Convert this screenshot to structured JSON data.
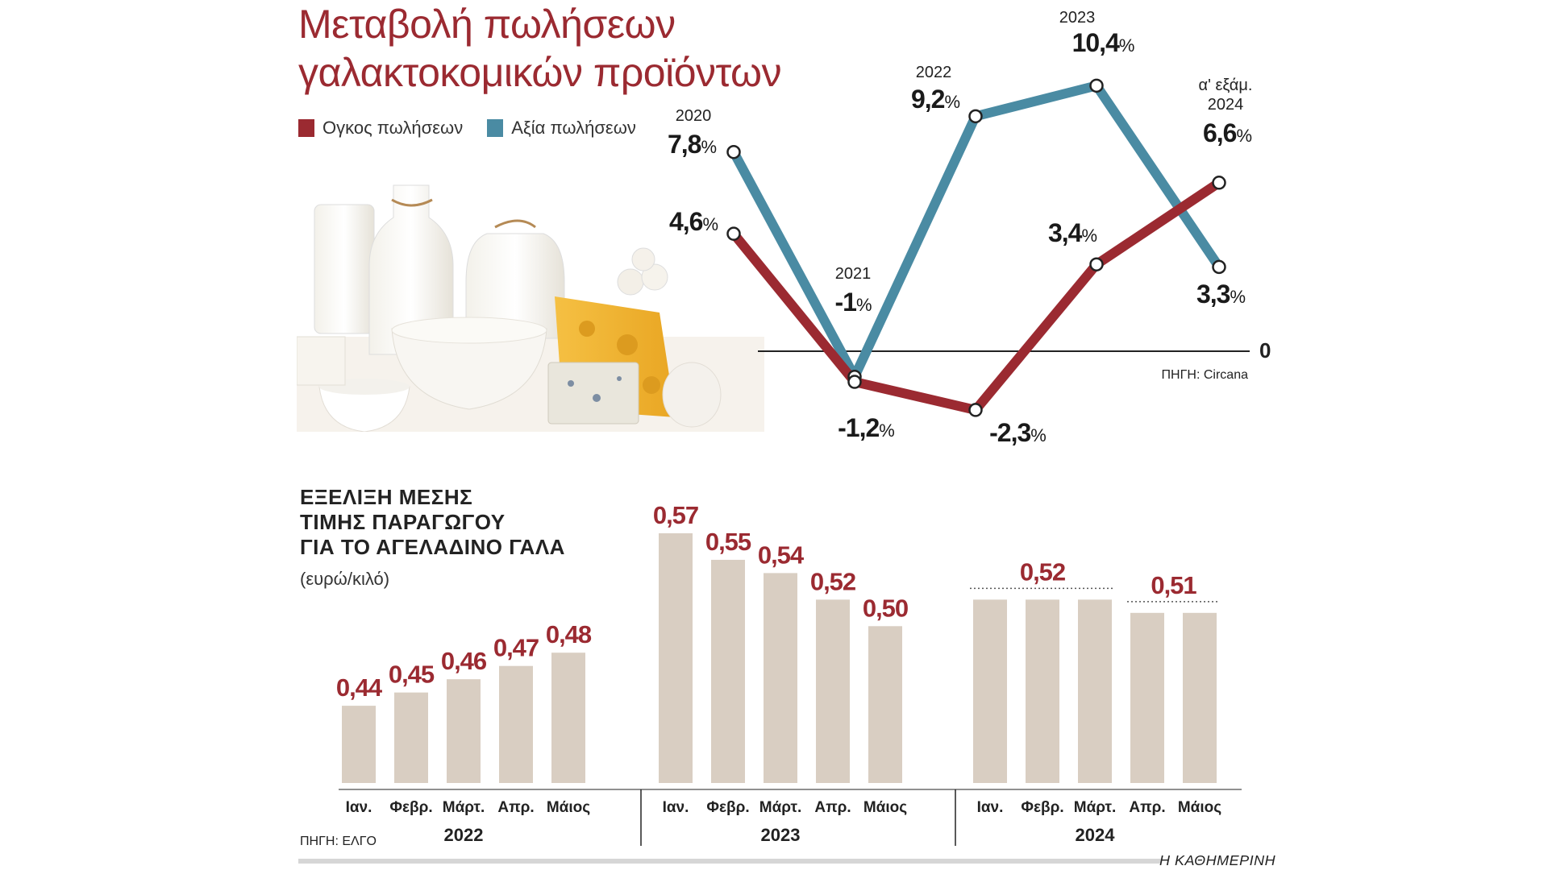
{
  "header": {
    "title_line1": "Μεταβολή πωλήσεων",
    "title_line2": "γαλακτοκομικών προϊόντων"
  },
  "legend": {
    "volume_label": "Ογκος πωλήσεων",
    "value_label": "Αξία πωλήσεων"
  },
  "colors": {
    "volume": "#9b2a31",
    "value": "#4a8ba3",
    "bar": "#d9cec2",
    "label_red": "#9b2a31"
  },
  "illustration": {
    "icon": "dairy-products-icon"
  },
  "line_source": "ΠΗΓΗ: Circana",
  "chart_data": [
    {
      "type": "line",
      "title": "Μεταβολή πωλήσεων γαλακτοκομικών προϊόντων",
      "categories": [
        "2020",
        "2021",
        "2022",
        "2023",
        "α' εξάμ. 2024"
      ],
      "zero_label": "0",
      "ylim": [
        -3,
        11
      ],
      "series": [
        {
          "name": "Ογκος πωλήσεων",
          "values": [
            4.6,
            -1.2,
            -2.3,
            3.4,
            6.6
          ],
          "labels": [
            "4,6%",
            "-1,2%",
            "-2,3%",
            "3,4%",
            "6,6%"
          ]
        },
        {
          "name": "Αξία πωλήσεων",
          "values": [
            7.8,
            -1.0,
            9.2,
            10.4,
            3.3
          ],
          "labels": [
            "7,8%",
            "-1%",
            "9,2%",
            "10,4%",
            "3,3%"
          ]
        }
      ],
      "year_labels": [
        "2020",
        "2021",
        "2022",
        "2023",
        "α' εξάμ.",
        "2024"
      ]
    },
    {
      "type": "bar",
      "title": "ΕΞΕΛΙΞΗ ΜΕΣΗΣ ΤΙΜΗΣ ΠΑΡΑΓΩΓΟΥ ΓΙΑ ΤΟ ΑΓΕΛΑΔΙΝΟ ΓΑΛΑ",
      "title_lines": [
        "ΕΞΕΛΙΞΗ ΜΕΣΗΣ",
        "ΤΙΜΗΣ ΠΑΡΑΓΩΓΟΥ",
        "ΓΙΑ ΤΟ ΑΓΕΛΑΔΙΝΟ ΓΑΛΑ"
      ],
      "unit": "(ευρώ/κιλό)",
      "ylim": [
        0.4,
        0.58
      ],
      "groups": [
        {
          "year": "2022",
          "months": [
            "Ιαν.",
            "Φεβρ.",
            "Μάρτ.",
            "Απρ.",
            "Μάιος"
          ],
          "values": [
            0.44,
            0.45,
            0.46,
            0.47,
            0.48
          ],
          "labels": [
            "0,44",
            "0,45",
            "0,46",
            "0,47",
            "0,48"
          ]
        },
        {
          "year": "2023",
          "months": [
            "Ιαν.",
            "Φεβρ.",
            "Μάρτ.",
            "Απρ.",
            "Μάιος"
          ],
          "values": [
            0.57,
            0.55,
            0.54,
            0.52,
            0.5
          ],
          "labels": [
            "0,57",
            "0,55",
            "0,54",
            "0,52",
            "0,50"
          ]
        },
        {
          "year": "2024",
          "months": [
            "Ιαν.",
            "Φεβρ.",
            "Μάρτ.",
            "Απρ.",
            "Μάιος"
          ],
          "values": [
            0.52,
            0.52,
            0.52,
            0.51,
            0.51
          ],
          "group_labels": [
            {
              "text": "0,52",
              "from": 0,
              "to": 2
            },
            {
              "text": "0,51",
              "from": 3,
              "to": 4
            }
          ]
        }
      ]
    }
  ],
  "bar_source": "ΠΗΓΗ: ΕΛΓΟ",
  "brand": "Η ΚΑΘΗΜΕΡΙΝΗ"
}
